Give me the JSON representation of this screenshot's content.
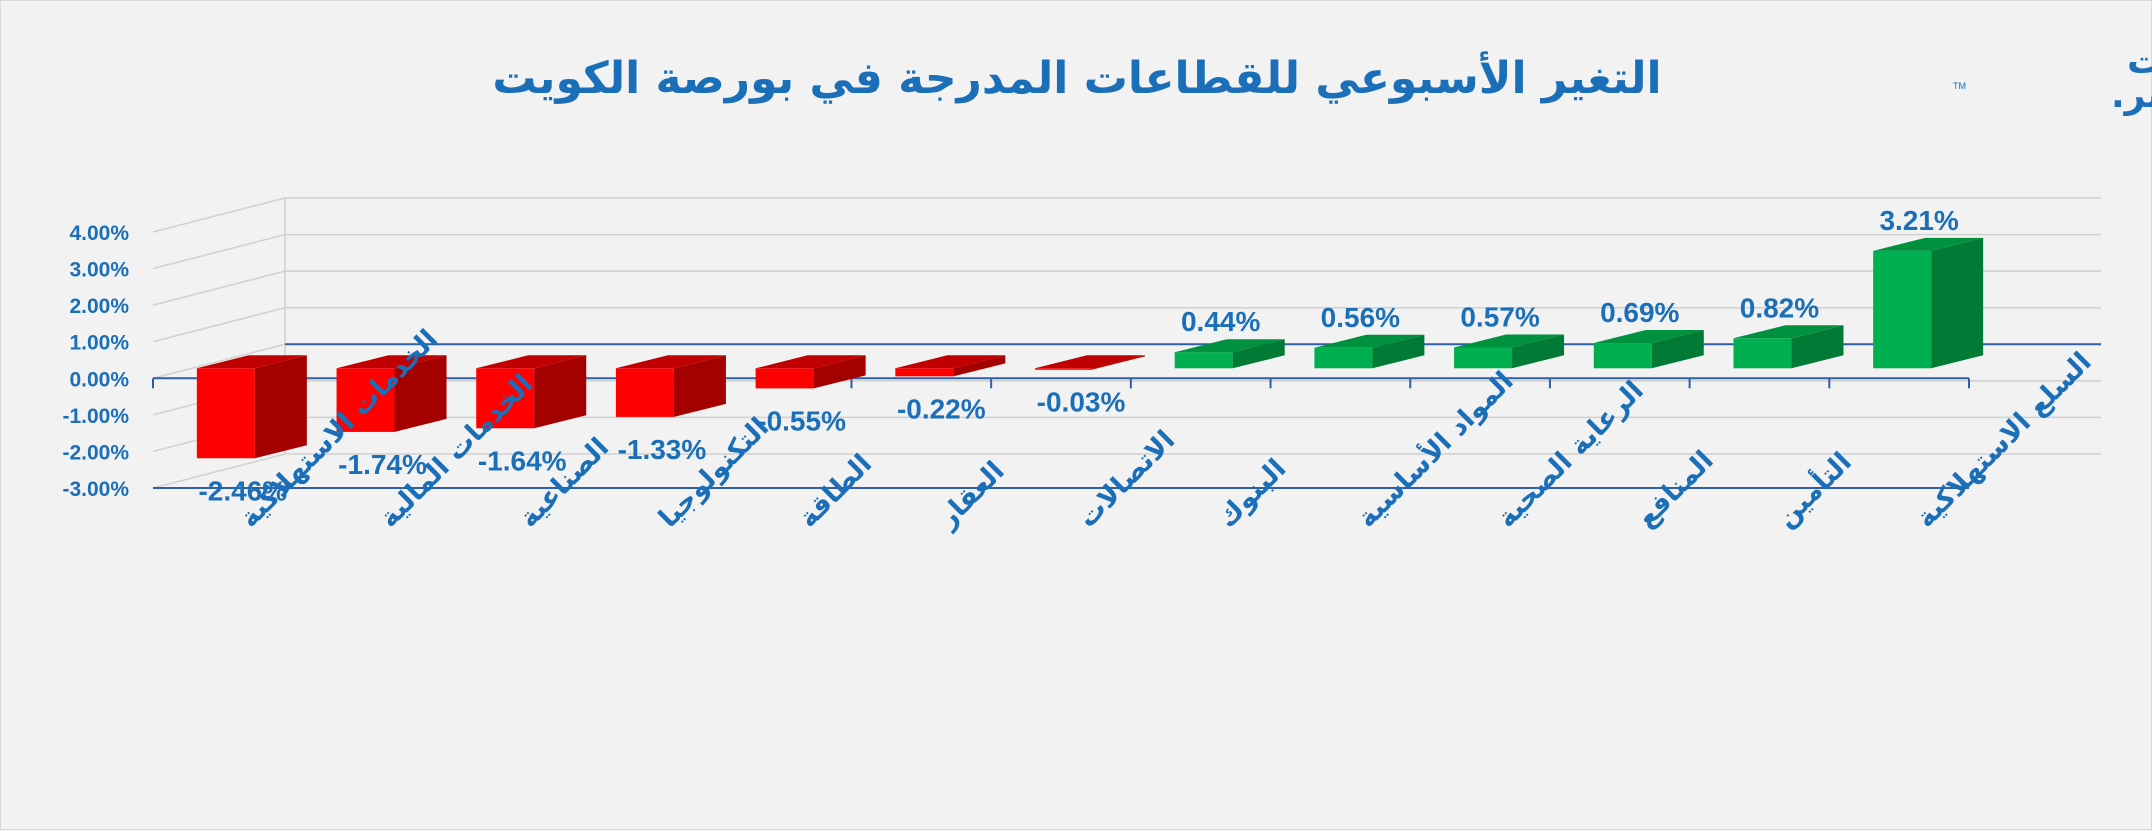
{
  "logo": {
    "line1": "معلومات",
    "line2": "مباشر.",
    "tm": "TM"
  },
  "colors": {
    "positive_front": "#00b050",
    "positive_side": "#007a35",
    "positive_top": "#00913f",
    "negative_front": "#ff0000",
    "negative_side": "#a50000",
    "negative_top": "#c00000",
    "text": "#1a6fb8",
    "axis": "#2e5fa8",
    "grid": "#d0d0d0"
  },
  "chart_data": {
    "type": "bar",
    "title": "التغير الأسبوعي للقطاعات المدرجة في بورصة الكويت",
    "categories": [
      "الخدمات الاستهلاكية",
      "الخدمات المالية",
      "الصناعية",
      "التكنولوجيا",
      "الطاقة",
      "العقار",
      "الاتصالات",
      "البنوك",
      "المواد الأساسية",
      "الرعاية الصحية",
      "المنافع",
      "التأمين",
      "السلع الاستهلاكية"
    ],
    "values": [
      -2.46,
      -1.74,
      -1.64,
      -1.33,
      -0.55,
      -0.22,
      -0.03,
      0.44,
      0.56,
      0.57,
      0.69,
      0.82,
      3.21
    ],
    "value_labels": [
      "-2.46%",
      "-1.74%",
      "-1.64%",
      "-1.33%",
      "-0.55%",
      "-0.22%",
      "-0.03%",
      "0.44%",
      "0.56%",
      "0.57%",
      "0.69%",
      "0.82%",
      "3.21%"
    ],
    "y_ticks": [
      4,
      3,
      2,
      1,
      0,
      -1,
      -2,
      -3
    ],
    "y_tick_labels": [
      "4.00%",
      "3.00%",
      "2.00%",
      "1.00%",
      "0.00%",
      "-1.00%",
      "-2.00%",
      "-3.00%"
    ],
    "ylim": [
      -3,
      4
    ],
    "grid": true,
    "legend": "none",
    "xlabel": "",
    "ylabel": ""
  }
}
